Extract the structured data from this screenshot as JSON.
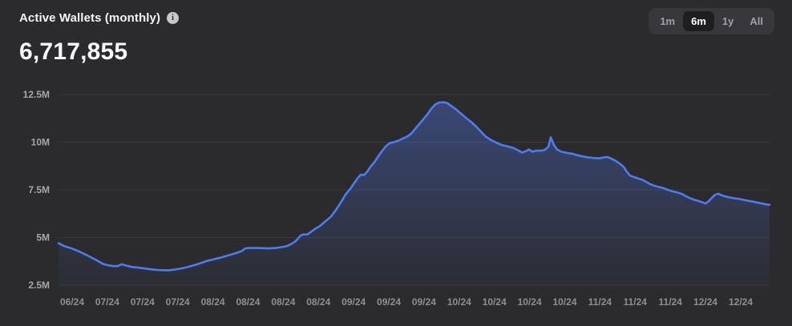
{
  "header": {
    "title": "Active Wallets (monthly)",
    "info_icon": "i",
    "value": "6,717,855"
  },
  "range_selector": {
    "options": [
      {
        "label": "1m",
        "active": false
      },
      {
        "label": "6m",
        "active": true
      },
      {
        "label": "1y",
        "active": false
      },
      {
        "label": "All",
        "active": false
      }
    ]
  },
  "colors": {
    "background": "#2b2b2e",
    "line": "#4e7cf0",
    "area_fill": "#5078eb",
    "grid": "#39393c",
    "y_label": "#a6a6ac",
    "x_label": "#8e8e95",
    "title_text": "#f4f4f5",
    "range_bg": "#38383c",
    "range_active_bg": "#1e1e21"
  },
  "chart_data": {
    "type": "area",
    "title": "Active Wallets (monthly)",
    "current_value": 6717855,
    "value_unit": "millions of wallets",
    "grid": "horizontal",
    "legend": "none",
    "y_axis": {
      "ticks": [
        2.5,
        5,
        7.5,
        10,
        12.5
      ],
      "tick_labels": [
        "2.5M",
        "5M",
        "7.5M",
        "10M",
        "12.5M"
      ],
      "range": [
        2.5,
        12.5
      ]
    },
    "x_axis": {
      "tick_labels": [
        "06/24",
        "07/24",
        "07/24",
        "07/24",
        "08/24",
        "08/24",
        "08/24",
        "08/24",
        "09/24",
        "09/24",
        "09/24",
        "10/24",
        "10/24",
        "10/24",
        "10/24",
        "11/24",
        "11/24",
        "11/24",
        "12/24",
        "12/24"
      ]
    },
    "series": [
      {
        "name": "Active Wallets",
        "x_unit": "px-position (time axis 73..960 = 06/24..12/24)",
        "points": [
          [
            73,
            4.7
          ],
          [
            80,
            4.55
          ],
          [
            88,
            4.45
          ],
          [
            97,
            4.3
          ],
          [
            106,
            4.12
          ],
          [
            114,
            3.95
          ],
          [
            121,
            3.8
          ],
          [
            128,
            3.62
          ],
          [
            134,
            3.55
          ],
          [
            141,
            3.5
          ],
          [
            147,
            3.5
          ],
          [
            152,
            3.6
          ],
          [
            157,
            3.53
          ],
          [
            164,
            3.46
          ],
          [
            172,
            3.42
          ],
          [
            180,
            3.38
          ],
          [
            188,
            3.33
          ],
          [
            196,
            3.3
          ],
          [
            204,
            3.28
          ],
          [
            211,
            3.28
          ],
          [
            218,
            3.32
          ],
          [
            226,
            3.38
          ],
          [
            232,
            3.43
          ],
          [
            238,
            3.5
          ],
          [
            245,
            3.58
          ],
          [
            252,
            3.68
          ],
          [
            259,
            3.78
          ],
          [
            266,
            3.85
          ],
          [
            273,
            3.92
          ],
          [
            280,
            4.0
          ],
          [
            288,
            4.1
          ],
          [
            296,
            4.2
          ],
          [
            302,
            4.3
          ],
          [
            306,
            4.43
          ],
          [
            312,
            4.45
          ],
          [
            320,
            4.45
          ],
          [
            328,
            4.44
          ],
          [
            336,
            4.43
          ],
          [
            344,
            4.45
          ],
          [
            352,
            4.5
          ],
          [
            358,
            4.55
          ],
          [
            363,
            4.65
          ],
          [
            368,
            4.78
          ],
          [
            372,
            4.95
          ],
          [
            375,
            5.1
          ],
          [
            379,
            5.17
          ],
          [
            383,
            5.15
          ],
          [
            388,
            5.3
          ],
          [
            393,
            5.45
          ],
          [
            399,
            5.6
          ],
          [
            406,
            5.85
          ],
          [
            413,
            6.1
          ],
          [
            420,
            6.5
          ],
          [
            426,
            6.9
          ],
          [
            431,
            7.25
          ],
          [
            436,
            7.5
          ],
          [
            441,
            7.8
          ],
          [
            446,
            8.1
          ],
          [
            450,
            8.3
          ],
          [
            454,
            8.27
          ],
          [
            458,
            8.45
          ],
          [
            462,
            8.7
          ],
          [
            467,
            8.95
          ],
          [
            471,
            9.2
          ],
          [
            476,
            9.5
          ],
          [
            481,
            9.77
          ],
          [
            486,
            9.95
          ],
          [
            491,
            10.0
          ],
          [
            497,
            10.08
          ],
          [
            503,
            10.2
          ],
          [
            508,
            10.3
          ],
          [
            513,
            10.45
          ],
          [
            518,
            10.7
          ],
          [
            523,
            10.95
          ],
          [
            528,
            11.2
          ],
          [
            533,
            11.45
          ],
          [
            538,
            11.75
          ],
          [
            543,
            11.98
          ],
          [
            548,
            12.08
          ],
          [
            553,
            12.1
          ],
          [
            558,
            12.05
          ],
          [
            563,
            11.9
          ],
          [
            569,
            11.72
          ],
          [
            575,
            11.5
          ],
          [
            581,
            11.28
          ],
          [
            588,
            11.05
          ],
          [
            594,
            10.82
          ],
          [
            600,
            10.55
          ],
          [
            606,
            10.3
          ],
          [
            612,
            10.12
          ],
          [
            619,
            9.98
          ],
          [
            626,
            9.85
          ],
          [
            633,
            9.78
          ],
          [
            640,
            9.7
          ],
          [
            646,
            9.58
          ],
          [
            651,
            9.46
          ],
          [
            656,
            9.52
          ],
          [
            660,
            9.62
          ],
          [
            664,
            9.5
          ],
          [
            669,
            9.56
          ],
          [
            674,
            9.55
          ],
          [
            679,
            9.58
          ],
          [
            684,
            9.75
          ],
          [
            687,
            10.25
          ],
          [
            691,
            9.85
          ],
          [
            695,
            9.62
          ],
          [
            700,
            9.5
          ],
          [
            706,
            9.45
          ],
          [
            713,
            9.4
          ],
          [
            720,
            9.32
          ],
          [
            727,
            9.25
          ],
          [
            734,
            9.2
          ],
          [
            741,
            9.17
          ],
          [
            748,
            9.15
          ],
          [
            753,
            9.2
          ],
          [
            758,
            9.22
          ],
          [
            763,
            9.13
          ],
          [
            768,
            9.02
          ],
          [
            773,
            8.88
          ],
          [
            778,
            8.7
          ],
          [
            782,
            8.45
          ],
          [
            786,
            8.25
          ],
          [
            791,
            8.17
          ],
          [
            796,
            8.1
          ],
          [
            801,
            8.03
          ],
          [
            806,
            7.92
          ],
          [
            811,
            7.8
          ],
          [
            816,
            7.72
          ],
          [
            821,
            7.66
          ],
          [
            827,
            7.6
          ],
          [
            833,
            7.5
          ],
          [
            839,
            7.42
          ],
          [
            845,
            7.36
          ],
          [
            851,
            7.28
          ],
          [
            856,
            7.16
          ],
          [
            861,
            7.06
          ],
          [
            866,
            6.98
          ],
          [
            871,
            6.92
          ],
          [
            876,
            6.85
          ],
          [
            880,
            6.78
          ],
          [
            884,
            6.9
          ],
          [
            888,
            7.08
          ],
          [
            892,
            7.24
          ],
          [
            896,
            7.3
          ],
          [
            900,
            7.22
          ],
          [
            905,
            7.15
          ],
          [
            910,
            7.1
          ],
          [
            916,
            7.06
          ],
          [
            922,
            7.02
          ],
          [
            928,
            6.97
          ],
          [
            934,
            6.92
          ],
          [
            940,
            6.88
          ],
          [
            946,
            6.82
          ],
          [
            951,
            6.78
          ],
          [
            956,
            6.73
          ],
          [
            960,
            6.72
          ]
        ]
      }
    ]
  }
}
